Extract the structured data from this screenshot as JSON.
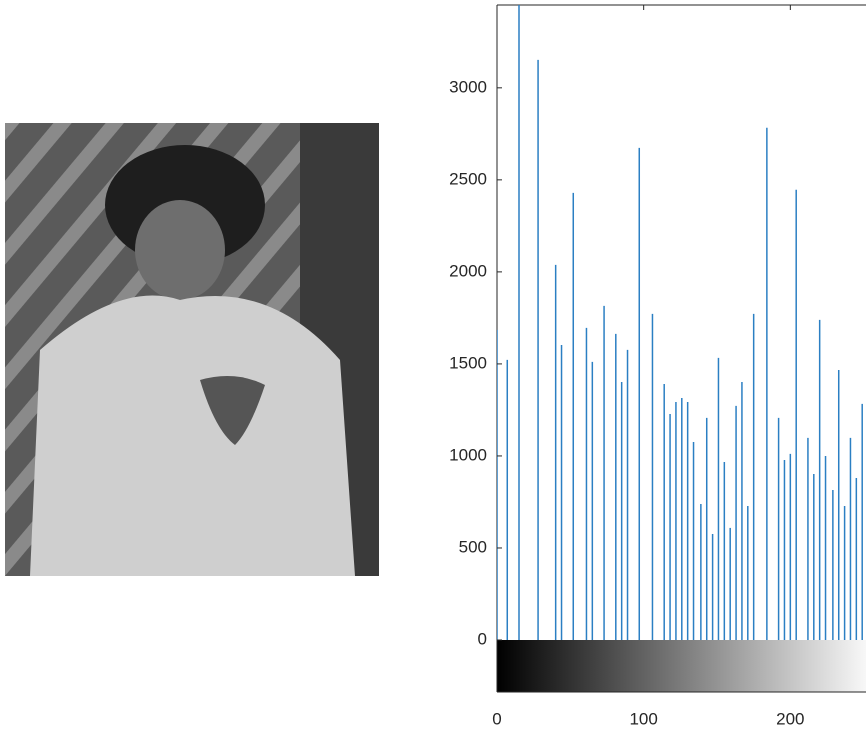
{
  "chart_data": {
    "type": "stem",
    "color": "#2b7fc3",
    "x": [
      0,
      7,
      15,
      28,
      40,
      44,
      52,
      61,
      65,
      73,
      81,
      85,
      89,
      97,
      106,
      114,
      118,
      122,
      126,
      130,
      134,
      139,
      143,
      147,
      151,
      155,
      159,
      163,
      167,
      171,
      175,
      184,
      192,
      196,
      200,
      204,
      212,
      216,
      220,
      224,
      229,
      233,
      237,
      241,
      245,
      249
    ],
    "values": [
      1685,
      1522,
      3600,
      3152,
      2038,
      1603,
      2429,
      1696,
      1511,
      1815,
      1663,
      1402,
      1576,
      2674,
      1772,
      1391,
      1228,
      1293,
      1315,
      1293,
      1076,
      739,
      1207,
      576,
      1533,
      967,
      609,
      1272,
      1402,
      728,
      1772,
      2783,
      1207,
      978,
      1011,
      2446,
      1098,
      902,
      1739,
      1000,
      815,
      1467,
      728,
      1098,
      880,
      1283
    ],
    "xlim": [
      0,
      255
    ],
    "ylim": [
      0,
      3450
    ],
    "xticks": [
      0,
      100,
      200
    ],
    "yticks": [
      0,
      500,
      1000,
      1500,
      2000,
      2500,
      3000
    ]
  }
}
